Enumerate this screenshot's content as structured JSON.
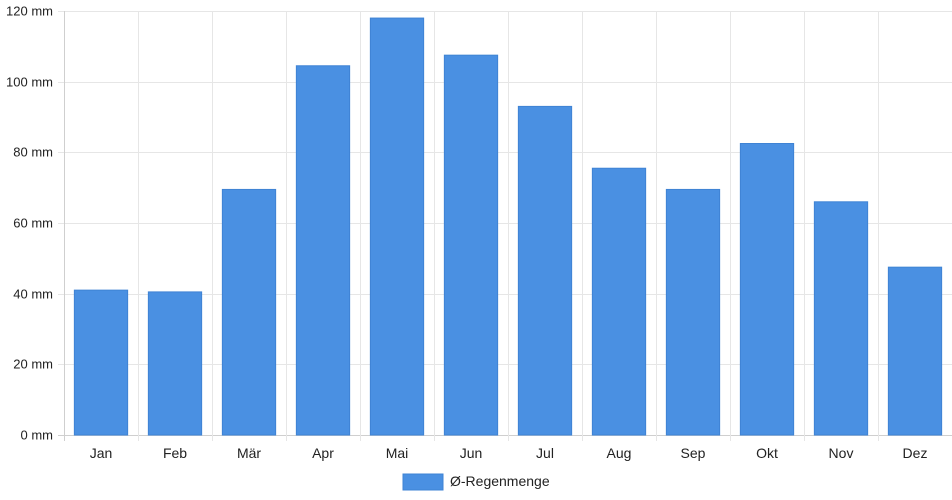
{
  "chart_data": {
    "type": "bar",
    "categories": [
      "Jan",
      "Feb",
      "Mär",
      "Apr",
      "Mai",
      "Jun",
      "Jul",
      "Aug",
      "Sep",
      "Okt",
      "Nov",
      "Dez"
    ],
    "series": [
      {
        "name": "Ø-Regenmenge",
        "values": [
          41,
          40.5,
          69.5,
          104.5,
          118,
          107.5,
          93,
          75.5,
          69.5,
          82.5,
          66,
          47.5
        ]
      }
    ],
    "y_ticks": [
      "0 mm",
      "20 mm",
      "40 mm",
      "60 mm",
      "80 mm",
      "100 mm",
      "120 mm"
    ],
    "ylim": [
      0,
      120
    ],
    "y_unit": "mm",
    "grid": true,
    "legend_position": "bottom-center",
    "colors": {
      "bar": "#4a90e2",
      "bar_border": "#3f83d4",
      "grid": "#e6e6e6",
      "axis": "#cfcfcf"
    }
  }
}
